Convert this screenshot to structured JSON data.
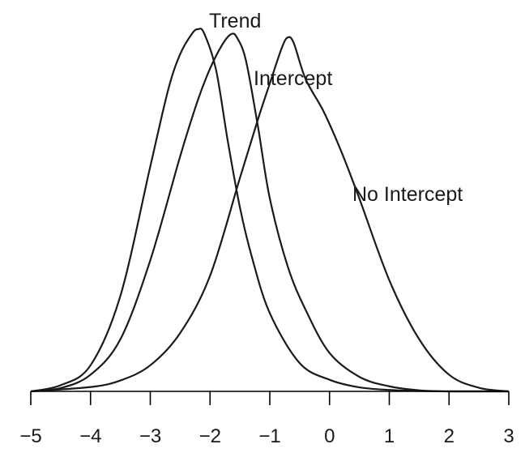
{
  "chart_data": {
    "type": "line",
    "title": "",
    "xlabel": "",
    "ylabel": "",
    "xlim": [
      -5,
      3
    ],
    "ylim": [
      0,
      1
    ],
    "x_ticks": [
      -5,
      -4,
      -3,
      -2,
      -1,
      0,
      1,
      2,
      3
    ],
    "tick_labels": [
      "−5",
      "−4",
      "−3",
      "−2",
      "−1",
      "0",
      "1",
      "2",
      "3"
    ],
    "grid": false,
    "legend": "none (series labelled directly on curves)",
    "series": [
      {
        "name": "Trend",
        "x": [
          -5.0,
          -4.5,
          -4.0,
          -3.5,
          -3.0,
          -2.7,
          -2.5,
          -2.3,
          -2.2,
          -2.1,
          -1.9,
          -1.7,
          -1.5,
          -1.3,
          -1.0,
          -0.5,
          0.0,
          0.5,
          1.0,
          1.5,
          2.0,
          3.0
        ],
        "y": [
          0.0,
          0.017,
          0.072,
          0.264,
          0.621,
          0.833,
          0.931,
          0.988,
          1.0,
          0.989,
          0.888,
          0.688,
          0.508,
          0.371,
          0.216,
          0.078,
          0.032,
          0.011,
          0.004,
          0.001,
          0.0,
          0.0
        ]
      },
      {
        "name": "Intercept",
        "x": [
          -5.0,
          -4.5,
          -4.0,
          -3.5,
          -3.0,
          -2.5,
          -2.2,
          -2.0,
          -1.8,
          -1.65,
          -1.55,
          -1.4,
          -1.2,
          -1.0,
          -0.7,
          -0.4,
          0.0,
          0.5,
          1.0,
          1.5,
          2.0,
          3.0
        ],
        "y": [
          0.0,
          0.009,
          0.046,
          0.144,
          0.362,
          0.649,
          0.806,
          0.891,
          0.956,
          0.986,
          0.977,
          0.914,
          0.733,
          0.533,
          0.345,
          0.225,
          0.106,
          0.04,
          0.014,
          0.003,
          0.0,
          0.0
        ]
      },
      {
        "name": "No Intercept",
        "x": [
          -5.0,
          -4.0,
          -3.5,
          -3.0,
          -2.5,
          -2.0,
          -1.5,
          -1.2,
          -1.0,
          -0.8,
          -0.7,
          -0.6,
          -0.4,
          -0.1,
          0.2,
          0.5,
          1.0,
          1.5,
          2.0,
          2.5,
          3.0
        ],
        "y": [
          0.0,
          0.012,
          0.03,
          0.072,
          0.161,
          0.319,
          0.589,
          0.75,
          0.85,
          0.948,
          0.977,
          0.962,
          0.862,
          0.773,
          0.661,
          0.532,
          0.307,
          0.144,
          0.046,
          0.01,
          0.0
        ]
      }
    ]
  }
}
